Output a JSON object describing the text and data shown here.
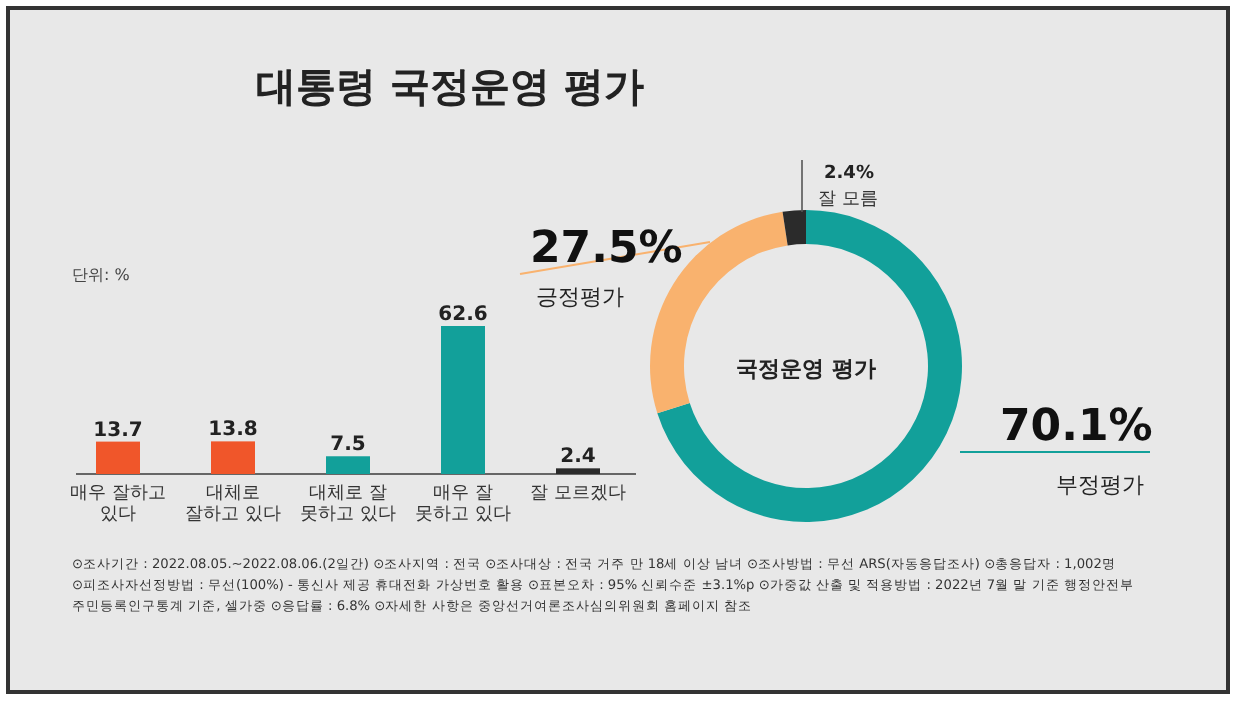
{
  "chart_data": [
    {
      "type": "bar",
      "title": "대통령 국정운영 평가",
      "categories": [
        "매우 잘하고 있다",
        "대체로 잘하고 있다",
        "대체로 잘 못하고 있다",
        "매우 잘 못하고 있다",
        "잘 모르겠다"
      ],
      "values": [
        13.7,
        13.8,
        7.5,
        62.6,
        2.4
      ],
      "colors": [
        "#f0562a",
        "#f0562a",
        "#12a09a",
        "#12a09a",
        "#2b2b2b"
      ],
      "data_labels": true,
      "annotations": [
        "단위: %",
        "⊙조사기간 : 2022.08.05.~2022.08.06.(2일간)  ⊙조사지역 : 전국  ⊙조사대상 : 전국 거주 만 18세 이상 남녀  ⊙조사방법 : 무선 ARS(자동응답조사)  ⊙총응답자 : 1,002명",
        "⊙피조사자선정방법 : 무선(100%) - 통신사 제공 휴대전화 가상번호 활용  ⊙표본오차 : 95% 신뢰수준 ±3.1%p  ⊙가중값 산출 및 적용방법 : 2022년 7월 말 기준 행정안전부",
        "주민등록인구통계 기준, 셀가중  ⊙응답률 : 6.8%  ⊙자세한 사항은 중앙선거여론조사심의위원회 홈페이지 참조"
      ]
    },
    {
      "type": "donut",
      "title": "국정운영 평가",
      "categories": [
        "부정평가",
        "긍정평가",
        "잘 모름"
      ],
      "values": [
        70.1,
        27.5,
        2.4
      ],
      "colors": [
        "#12a09a",
        "#f9b26e",
        "#2b2b2b"
      ],
      "value_labels": [
        "70.1%",
        "27.5%",
        "2.4%"
      ]
    }
  ]
}
